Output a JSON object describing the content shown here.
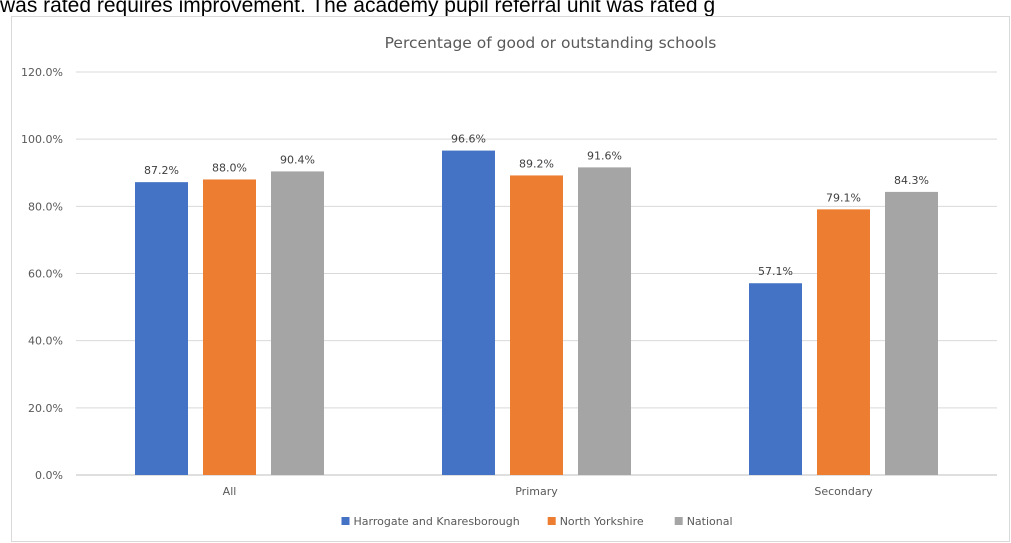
{
  "header_text": "was rated requires improvement. The academy pupil referral unit was rated g",
  "chart_data": {
    "type": "bar",
    "title": "Percentage of good or outstanding schools",
    "xlabel": "",
    "ylabel": "",
    "categories": [
      "All",
      "Primary",
      "Secondary"
    ],
    "series": [
      {
        "name": "Harrogate and Knaresborough",
        "color": "#4472C4",
        "values": [
          87.2,
          96.6,
          57.1
        ],
        "labels": [
          "87.2%",
          "96.6%",
          "57.1%"
        ]
      },
      {
        "name": "North Yorkshire",
        "color": "#ED7D31",
        "values": [
          88.0,
          89.2,
          79.1
        ],
        "labels": [
          "88.0%",
          "89.2%",
          "79.1%"
        ]
      },
      {
        "name": "National",
        "color": "#A5A5A5",
        "values": [
          90.4,
          91.6,
          84.3
        ],
        "labels": [
          "90.4%",
          "91.6%",
          "84.3%"
        ]
      }
    ],
    "ylim": [
      0,
      120
    ],
    "yticks": [
      0,
      20,
      40,
      60,
      80,
      100,
      120
    ],
    "ytick_labels": [
      "0.0%",
      "20.0%",
      "40.0%",
      "60.0%",
      "80.0%",
      "100.0%",
      "120.0%"
    ],
    "grid": true,
    "legend_position": "bottom"
  }
}
